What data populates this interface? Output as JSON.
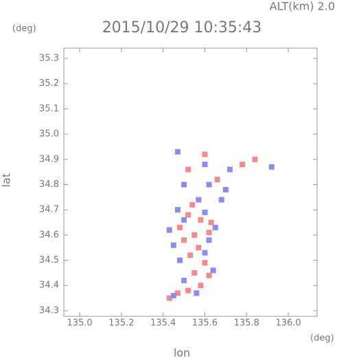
{
  "chart_data": {
    "type": "scatter",
    "title": "2015/10/29 10:35:43",
    "annotation": "ALT(km) 2.0",
    "x_label": "lon",
    "y_label": "lat",
    "x_unit": "(deg)",
    "y_unit": "(deg)",
    "xlim": [
      134.924,
      136.138
    ],
    "ylim": [
      34.278,
      35.341
    ],
    "xticks": [
      {
        "value": 135,
        "label": "135.0"
      },
      135.2,
      135.4,
      135.6,
      135.8,
      {
        "value": 136,
        "label": "136.0"
      }
    ],
    "yticks": [
      34.3,
      34.4,
      34.5,
      34.6,
      34.7,
      34.8,
      34.9,
      {
        "value": 35,
        "label": "35.0"
      },
      35.1,
      35.2,
      35.3
    ],
    "series": [
      {
        "color": "#f28c8c",
        "x": [
          135.43,
          135.47,
          135.52,
          135.58,
          135.62,
          135.55,
          135.6,
          135.53,
          135.57,
          135.5,
          135.55,
          135.62,
          135.48,
          135.58,
          135.52,
          135.63,
          135.54,
          135.66,
          135.6,
          135.78,
          135.84,
          135.52
        ],
        "y": [
          34.35,
          34.37,
          34.38,
          34.4,
          34.44,
          34.45,
          34.49,
          34.52,
          34.55,
          34.58,
          34.6,
          34.61,
          34.63,
          34.66,
          34.68,
          34.65,
          34.72,
          34.82,
          34.92,
          34.88,
          34.9,
          34.86
        ]
      },
      {
        "color": "#8c8cf0",
        "x": [
          135.45,
          135.56,
          135.5,
          135.64,
          135.48,
          135.6,
          135.45,
          135.62,
          135.43,
          135.65,
          135.5,
          135.6,
          135.47,
          135.57,
          135.62,
          135.7,
          135.5,
          135.47,
          135.6,
          135.72,
          135.92,
          135.68
        ],
        "y": [
          34.36,
          34.37,
          34.42,
          34.46,
          34.5,
          34.53,
          34.56,
          34.58,
          34.62,
          34.63,
          34.66,
          34.69,
          34.7,
          34.74,
          34.8,
          34.78,
          34.8,
          34.93,
          34.88,
          34.86,
          34.87,
          34.74
        ]
      }
    ]
  }
}
